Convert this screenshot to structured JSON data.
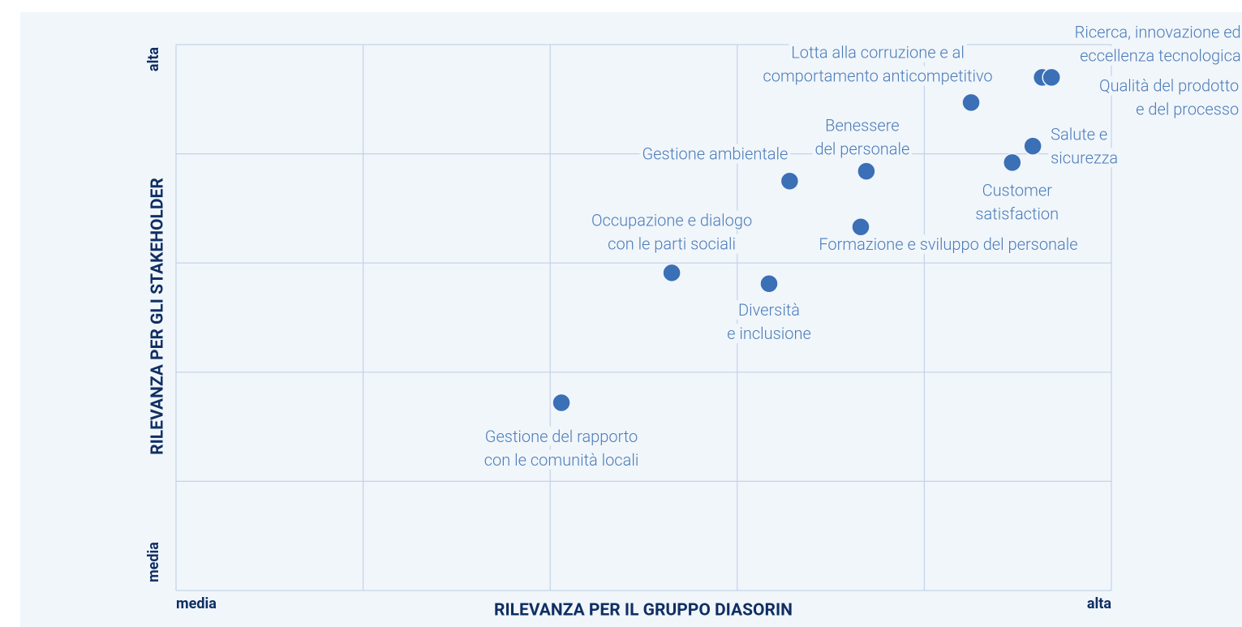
{
  "chart_data": {
    "type": "scatter",
    "xlabel": "RILEVANZA PER IL GRUPPO DIASORIN",
    "ylabel": "RILEVANZA PER GLI STAKEHOLDER",
    "xlim": [
      0,
      5
    ],
    "ylim": [
      0,
      5
    ],
    "xticks": [
      {
        "value": 0,
        "label": "media"
      },
      {
        "value": 5,
        "label": "alta"
      }
    ],
    "yticks": [
      {
        "value": 0,
        "label": "media"
      },
      {
        "value": 5,
        "label": "alta"
      }
    ],
    "xgrid": [
      0,
      1,
      2,
      3,
      4,
      5
    ],
    "ygrid": [
      0,
      1,
      2,
      3,
      4,
      5
    ],
    "grid": true,
    "color": "#3b6fb6",
    "points": [
      {
        "label": [
          "Ricerca, innovazione ed",
          "eccellenza tecnologica"
        ],
        "x": 4.63,
        "y": 4.7
      },
      {
        "label": [
          "Qualità del prodotto",
          "e del processo"
        ],
        "x": 4.68,
        "y": 4.7
      },
      {
        "label": [
          "Lotta alla corruzione e al",
          "comportamento anticompetitivo"
        ],
        "x": 4.25,
        "y": 4.47
      },
      {
        "label": [
          "Salute e",
          "sicurezza"
        ],
        "x": 4.58,
        "y": 4.07
      },
      {
        "label": [
          "Customer",
          "satisfaction"
        ],
        "x": 4.47,
        "y": 3.92
      },
      {
        "label": [
          "Benessere",
          "del personale"
        ],
        "x": 3.69,
        "y": 3.84
      },
      {
        "label": [
          "Gestione ambientale"
        ],
        "x": 3.28,
        "y": 3.75
      },
      {
        "label": [
          "Formazione e sviluppo del personale"
        ],
        "x": 3.66,
        "y": 3.33
      },
      {
        "label": [
          "Occupazione e dialogo",
          "con le parti sociali"
        ],
        "x": 2.65,
        "y": 2.91
      },
      {
        "label": [
          "Diversità",
          "e inclusione"
        ],
        "x": 3.17,
        "y": 2.81
      },
      {
        "label": [
          "Gestione del rapporto",
          "con le comunità locali"
        ],
        "x": 2.06,
        "y": 1.72
      }
    ]
  }
}
